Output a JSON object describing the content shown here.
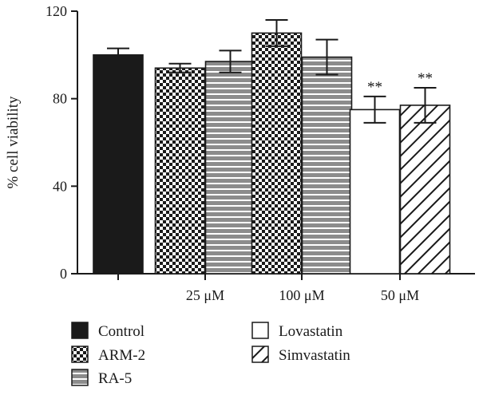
{
  "chart_data": {
    "type": "bar",
    "ylabel": "% cell viability",
    "ylim": [
      0,
      120
    ],
    "yticks": [
      0,
      40,
      80,
      120
    ],
    "groups": [
      {
        "label": "",
        "bars": [
          {
            "series": "Control",
            "value": 100,
            "error": 3,
            "annotation": ""
          }
        ]
      },
      {
        "label": "25 μM",
        "bars": [
          {
            "series": "ARM-2",
            "value": 94,
            "error": 2,
            "annotation": ""
          },
          {
            "series": "RA-5",
            "value": 97,
            "error": 5,
            "annotation": ""
          }
        ]
      },
      {
        "label": "100 μM",
        "bars": [
          {
            "series": "ARM-2",
            "value": 110,
            "error": 6,
            "annotation": ""
          },
          {
            "series": "RA-5",
            "value": 99,
            "error": 8,
            "annotation": ""
          }
        ]
      },
      {
        "label": "50 μM",
        "bars": [
          {
            "series": "Lovastatin",
            "value": 75,
            "error": 6,
            "annotation": "**"
          },
          {
            "series": "Simvastatin",
            "value": 77,
            "error": 8,
            "annotation": "**"
          }
        ]
      }
    ],
    "legend": [
      {
        "name": "Control",
        "pattern": "solid-black"
      },
      {
        "name": "ARM-2",
        "pattern": "checkerboard"
      },
      {
        "name": "RA-5",
        "pattern": "horizontal-stripes-gray"
      },
      {
        "name": "Lovastatin",
        "pattern": "white"
      },
      {
        "name": "Simvastatin",
        "pattern": "diagonal-hatch"
      }
    ],
    "legend_position": "bottom",
    "grid": false
  }
}
